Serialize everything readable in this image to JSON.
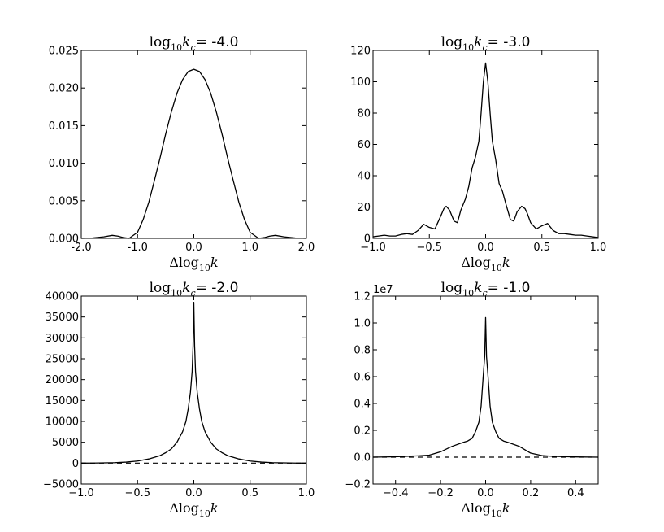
{
  "chart_data": [
    {
      "type": "line",
      "title": {
        "prefix": "log",
        "sub": "10",
        "var": "k",
        "varsub": "c",
        "eq": "=",
        "value": "-4.0"
      },
      "xlabel": {
        "delta": "Δ",
        "prefix": "log",
        "sub": "10",
        "var": "k"
      },
      "xlim": [
        -2.0,
        2.0
      ],
      "ylim": [
        0.0,
        0.025
      ],
      "xticks": [
        -2.0,
        -1.0,
        0.0,
        1.0,
        2.0
      ],
      "xtick_labels": [
        "-2.0",
        "-1.0",
        "0.0",
        "1.0",
        "2.0"
      ],
      "yticks": [
        0.0,
        0.005,
        0.01,
        0.015,
        0.02,
        0.025
      ],
      "ytick_labels": [
        "0.000",
        "0.005",
        "0.010",
        "0.015",
        "0.020",
        "0.025"
      ],
      "offset_label": "",
      "dashed_zero": false,
      "series": [
        {
          "style": "solid",
          "x": [
            -2.0,
            -1.8,
            -1.6,
            -1.45,
            -1.35,
            -1.25,
            -1.15,
            -1.0,
            -0.9,
            -0.8,
            -0.7,
            -0.6,
            -0.5,
            -0.4,
            -0.3,
            -0.2,
            -0.1,
            0.0,
            0.1,
            0.2,
            0.3,
            0.4,
            0.5,
            0.6,
            0.7,
            0.8,
            0.9,
            1.0,
            1.15,
            1.25,
            1.35,
            1.45,
            1.6,
            1.8,
            2.0
          ],
          "y": [
            0.0,
            5e-05,
            0.0002,
            0.0004,
            0.0003,
            0.0001,
            0.0,
            0.0008,
            0.0025,
            0.0048,
            0.0077,
            0.0107,
            0.0139,
            0.0168,
            0.0193,
            0.0211,
            0.0222,
            0.0225,
            0.0222,
            0.0211,
            0.0193,
            0.0168,
            0.0139,
            0.0107,
            0.0077,
            0.0048,
            0.0025,
            0.0008,
            0.0,
            0.0001,
            0.0003,
            0.0004,
            0.0002,
            5e-05,
            0.0
          ]
        }
      ]
    },
    {
      "type": "line",
      "title": {
        "prefix": "log",
        "sub": "10",
        "var": "k",
        "varsub": "c",
        "eq": "=",
        "value": "-3.0"
      },
      "xlabel": {
        "delta": "Δ",
        "prefix": "log",
        "sub": "10",
        "var": "k"
      },
      "xlim": [
        -1.0,
        1.0
      ],
      "ylim": [
        0,
        120
      ],
      "xticks": [
        -1.0,
        -0.5,
        0.0,
        0.5,
        1.0
      ],
      "xtick_labels": [
        "−1.0",
        "−0.5",
        "0.0",
        "0.5",
        "1.0"
      ],
      "yticks": [
        0,
        20,
        40,
        60,
        80,
        100,
        120
      ],
      "ytick_labels": [
        "0",
        "20",
        "40",
        "60",
        "80",
        "100",
        "120"
      ],
      "offset_label": "",
      "dashed_zero": false,
      "series": [
        {
          "style": "solid",
          "x": [
            -1.0,
            -0.95,
            -0.9,
            -0.85,
            -0.8,
            -0.75,
            -0.7,
            -0.65,
            -0.6,
            -0.55,
            -0.5,
            -0.45,
            -0.4,
            -0.37,
            -0.35,
            -0.32,
            -0.28,
            -0.25,
            -0.22,
            -0.18,
            -0.15,
            -0.12,
            -0.09,
            -0.06,
            -0.04,
            -0.02,
            0.0,
            0.02,
            0.04,
            0.06,
            0.09,
            0.12,
            0.15,
            0.18,
            0.22,
            0.25,
            0.28,
            0.32,
            0.35,
            0.37,
            0.4,
            0.45,
            0.5,
            0.55,
            0.6,
            0.65,
            0.7,
            0.75,
            0.8,
            0.85,
            0.9,
            0.95,
            1.0
          ],
          "y": [
            1,
            1.5,
            2,
            1.5,
            1.5,
            2.5,
            3,
            2.5,
            5,
            9,
            7,
            6,
            14,
            19,
            20.5,
            18,
            11,
            10,
            18,
            25,
            33,
            45,
            52,
            62,
            80,
            100,
            112,
            100,
            80,
            62,
            50,
            35,
            30,
            22,
            12,
            11,
            17,
            20.5,
            19,
            16,
            10,
            6,
            8,
            9.5,
            5,
            3,
            3,
            2.5,
            2,
            2,
            1.5,
            1,
            0.5
          ]
        }
      ]
    },
    {
      "type": "line",
      "title": {
        "prefix": "log",
        "sub": "10",
        "var": "k",
        "varsub": "c",
        "eq": "=",
        "value": "-2.0"
      },
      "xlabel": {
        "delta": "Δ",
        "prefix": "log",
        "sub": "10",
        "var": "k"
      },
      "xlim": [
        -1.0,
        1.0
      ],
      "ylim": [
        -5000,
        40000
      ],
      "xticks": [
        -1.0,
        -0.5,
        0.0,
        0.5,
        1.0
      ],
      "xtick_labels": [
        "−1.0",
        "−0.5",
        "0.0",
        "0.5",
        "1.0"
      ],
      "yticks": [
        -5000,
        0,
        5000,
        10000,
        15000,
        20000,
        25000,
        30000,
        35000,
        40000
      ],
      "ytick_labels": [
        "−5000",
        "0",
        "5000",
        "10000",
        "15000",
        "20000",
        "25000",
        "30000",
        "35000",
        "40000"
      ],
      "offset_label": "",
      "dashed_zero": true,
      "series": [
        {
          "style": "solid",
          "x": [
            -1.0,
            -0.9,
            -0.8,
            -0.7,
            -0.6,
            -0.5,
            -0.4,
            -0.3,
            -0.25,
            -0.2,
            -0.15,
            -0.1,
            -0.07,
            -0.05,
            -0.03,
            -0.015,
            -0.007,
            0.0,
            0.007,
            0.015,
            0.03,
            0.05,
            0.07,
            0.1,
            0.15,
            0.2,
            0.25,
            0.3,
            0.4,
            0.5,
            0.6,
            0.7,
            0.8,
            0.9,
            1.0
          ],
          "y": [
            0,
            20,
            60,
            120,
            250,
            500,
            1000,
            1800,
            2500,
            3400,
            5000,
            7500,
            10000,
            13000,
            17000,
            22000,
            28000,
            38500,
            28000,
            22000,
            17000,
            13000,
            10000,
            7500,
            5000,
            3400,
            2500,
            1800,
            1000,
            500,
            250,
            120,
            60,
            20,
            0
          ]
        }
      ]
    },
    {
      "type": "line",
      "title": {
        "prefix": "log",
        "sub": "10",
        "var": "k",
        "varsub": "c",
        "eq": "=",
        "value": "-1.0"
      },
      "xlabel": {
        "delta": "Δ",
        "prefix": "log",
        "sub": "10",
        "var": "k"
      },
      "xlim": [
        -0.5,
        0.5
      ],
      "ylim": [
        -0.2,
        1.2
      ],
      "xticks": [
        -0.4,
        -0.2,
        0.0,
        0.2,
        0.4
      ],
      "xtick_labels": [
        "−0.4",
        "−0.2",
        "0.0",
        "0.2",
        "0.4"
      ],
      "yticks": [
        -0.2,
        0.0,
        0.2,
        0.4,
        0.6,
        0.8,
        1.0,
        1.2
      ],
      "ytick_labels": [
        "−0.2",
        "0.0",
        "0.2",
        "0.4",
        "0.6",
        "0.8",
        "1.0",
        "1.2"
      ],
      "offset_label": "1e7",
      "dashed_zero": true,
      "series": [
        {
          "style": "solid",
          "x": [
            -0.5,
            -0.4,
            -0.3,
            -0.25,
            -0.2,
            -0.15,
            -0.1,
            -0.08,
            -0.06,
            -0.045,
            -0.03,
            -0.02,
            -0.01,
            -0.004,
            0.0,
            0.004,
            0.01,
            0.02,
            0.03,
            0.045,
            0.06,
            0.08,
            0.1,
            0.15,
            0.2,
            0.25,
            0.3,
            0.4,
            0.5
          ],
          "y": [
            0.0,
            0.003,
            0.01,
            0.015,
            0.04,
            0.08,
            0.11,
            0.12,
            0.14,
            0.19,
            0.26,
            0.38,
            0.62,
            0.75,
            1.04,
            0.75,
            0.62,
            0.38,
            0.26,
            0.19,
            0.14,
            0.12,
            0.11,
            0.08,
            0.03,
            0.012,
            0.006,
            0.002,
            0.0
          ]
        }
      ]
    }
  ]
}
